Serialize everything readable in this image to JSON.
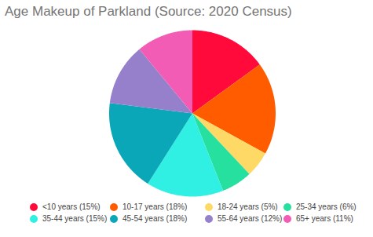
{
  "chart_data": {
    "type": "pie",
    "title": "Age Makeup of Parkland (Source: 2020 Census)",
    "categories": [
      "<10 years (15%)",
      "10-17 years (18%)",
      "18-24 years (5%)",
      "25-34 years (6%)",
      "35-44 years (15%)",
      "45-54 years (18%)",
      "55-64 years (12%)",
      "65+ years (11%)"
    ],
    "values": [
      15,
      18,
      5,
      6,
      15,
      18,
      12,
      11
    ],
    "colors": [
      "#ff0a3a",
      "#ff5c00",
      "#ffd966",
      "#26e0a0",
      "#2ff0e3",
      "#0aa7b8",
      "#9680cc",
      "#f25cb4"
    ],
    "legend": "bottom"
  }
}
